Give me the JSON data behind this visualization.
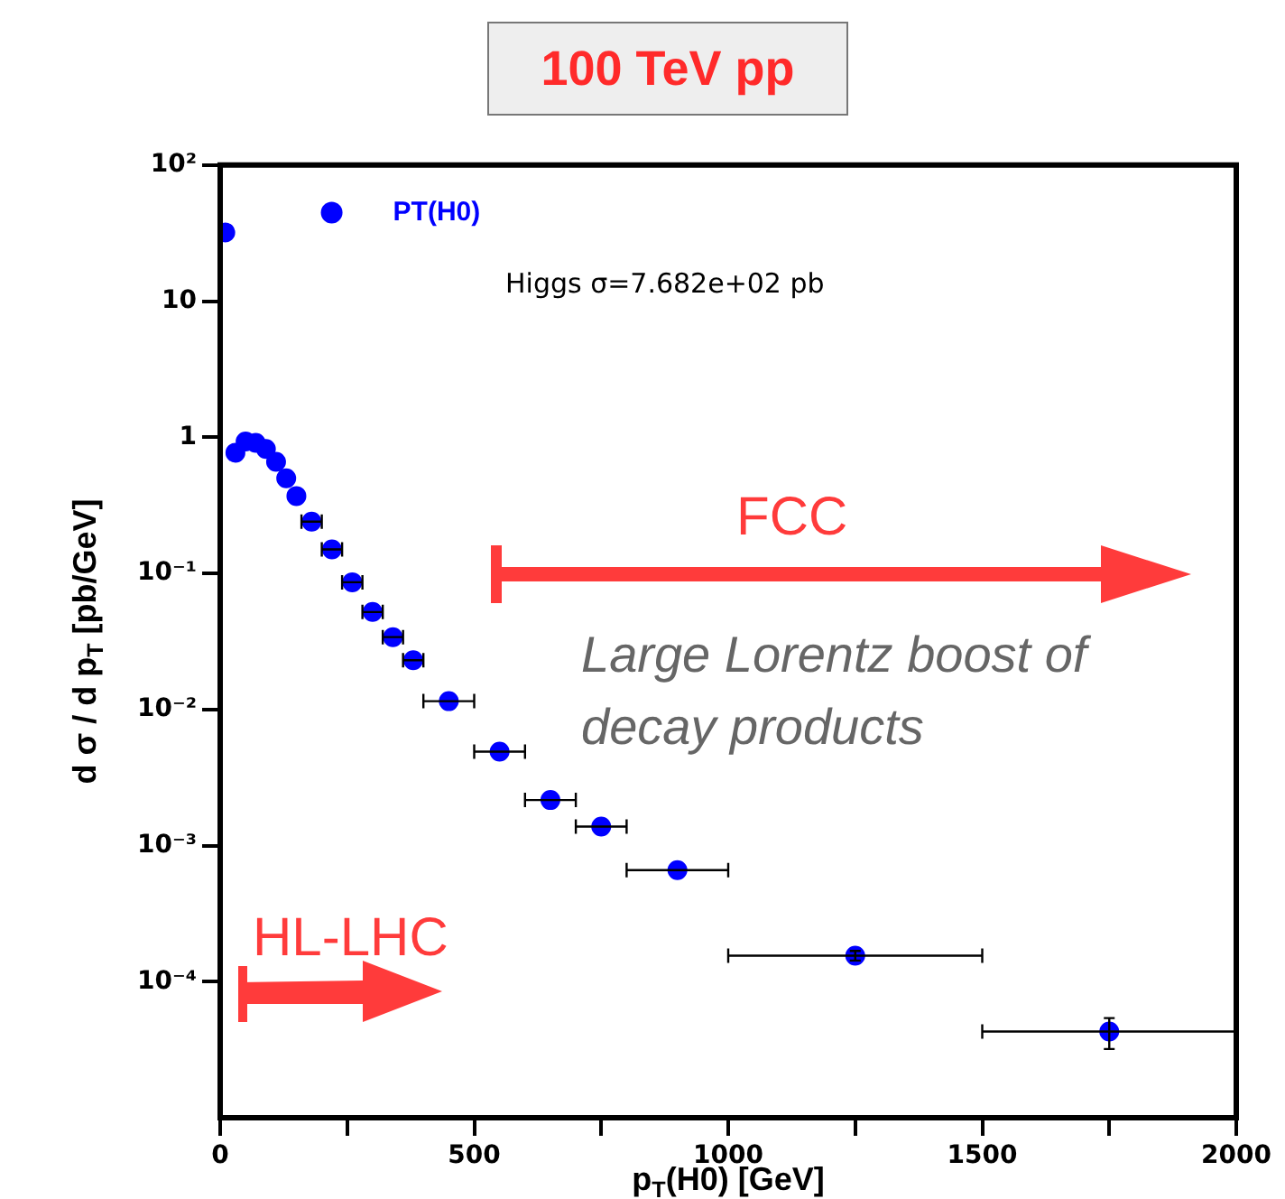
{
  "chart_data": {
    "type": "scatter",
    "title": "100 TeV pp",
    "xlabel": "p$_{T}$(H0) [GeV]",
    "ylabel": "d σ / d p$_{T}$ [pb/GeV]",
    "annotations": [
      "Higgs σ=7.682e+02 pb",
      "FCC",
      "Large Lorentz boost of decay products",
      "HL-LHC"
    ],
    "series": [
      {
        "name": "PT(H0)",
        "color": "#0000ff",
        "x": [
          10,
          30,
          50,
          70,
          90,
          110,
          130,
          150,
          180,
          220,
          260,
          300,
          340,
          380,
          450,
          550,
          650,
          750,
          900,
          1250,
          1750
        ],
        "values": [
          32,
          0.77,
          0.93,
          0.91,
          0.82,
          0.66,
          0.5,
          0.37,
          0.24,
          0.15,
          0.086,
          0.052,
          0.034,
          0.023,
          0.0115,
          0.0049,
          0.00216,
          0.00138,
          0.00066,
          0.000155,
          4.3e-05
        ],
        "errors": [
          null,
          null,
          null,
          null,
          null,
          null,
          null,
          null,
          null,
          null,
          null,
          null,
          null,
          null,
          null,
          null,
          null,
          null,
          null,
          [
            0.000143,
            0.000168
          ],
          [
            3.2e-05,
            5.4e-05
          ]
        ],
        "xerrors": [
          null,
          null,
          null,
          null,
          null,
          null,
          null,
          null,
          20,
          20,
          20,
          20,
          20,
          20,
          50,
          50,
          50,
          50,
          100,
          250,
          250
        ]
      }
    ],
    "xlim": [
      0,
      2000
    ],
    "xticks": [
      0,
      {
        "value": 250,
        "label": null
      },
      500,
      {
        "value": 750,
        "label": null
      },
      1000,
      {
        "value": 1250,
        "label": null
      },
      1500,
      {
        "value": 1750,
        "label": null
      },
      2000
    ],
    "ylim": [
      1e-05,
      100
    ],
    "yticks": [
      {
        "value": 0.0001,
        "label": "10⁻⁴"
      },
      {
        "value": 0.001,
        "label": "10⁻³"
      },
      {
        "value": 0.01,
        "label": "10⁻²"
      },
      {
        "value": 0.1,
        "label": "10⁻¹"
      },
      1,
      10,
      {
        "value": 100,
        "label": "10²"
      }
    ],
    "log": "y",
    "grid": false,
    "legend": "top left",
    "marker": "circle"
  }
}
